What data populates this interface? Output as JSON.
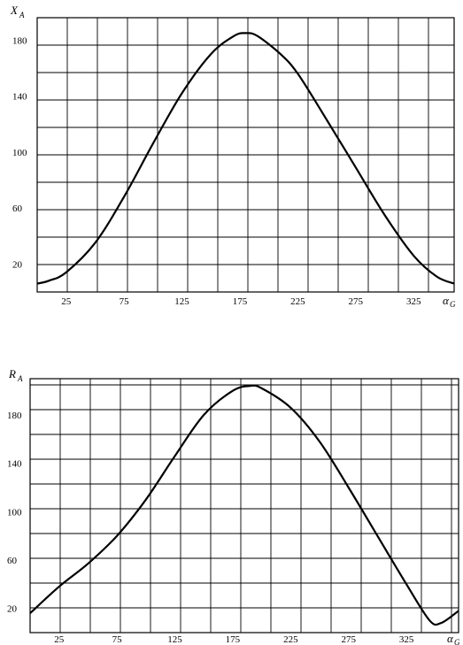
{
  "chart_data": [
    {
      "type": "line",
      "ylabel": "X",
      "ylabel_subscript": "A",
      "xlabel": "α",
      "xlabel_subscript": "G",
      "xlim": [
        0,
        360
      ],
      "ylim": [
        0,
        196
      ],
      "x_ticks": [
        25,
        75,
        125,
        175,
        225,
        275,
        325
      ],
      "x_tick_labels": [
        "25",
        "75",
        "125",
        "175",
        "225",
        "275",
        "325"
      ],
      "y_ticks": [
        20,
        60,
        100,
        140,
        180
      ],
      "y_tick_labels": [
        "20",
        "60",
        "100",
        "140",
        "180"
      ],
      "grid": true,
      "series": [
        {
          "x": [
            0,
            10,
            25,
            50,
            75,
            100,
            125,
            150,
            170,
            180,
            190,
            210,
            225,
            250,
            275,
            300,
            325,
            345,
            360
          ],
          "y": [
            6,
            8,
            14,
            35,
            68,
            106,
            142,
            170,
            183,
            185,
            183,
            170,
            156,
            123,
            89,
            55,
            26,
            11,
            6
          ]
        }
      ]
    },
    {
      "type": "line",
      "ylabel": "R",
      "ylabel_subscript": "A",
      "xlabel": "α",
      "xlabel_subscript": "G",
      "xlim": [
        0,
        370
      ],
      "ylim": [
        0,
        210
      ],
      "x_ticks": [
        25,
        75,
        125,
        175,
        225,
        275,
        325
      ],
      "x_tick_labels": [
        "25",
        "75",
        "125",
        "175",
        "225",
        "275",
        "325"
      ],
      "y_ticks": [
        20,
        60,
        100,
        140,
        180
      ],
      "y_tick_labels": [
        "20",
        "60",
        "100",
        "140",
        "180"
      ],
      "grid": true,
      "series": [
        {
          "x": [
            0,
            25,
            50,
            75,
            100,
            125,
            150,
            175,
            190,
            200,
            225,
            250,
            275,
            300,
            325,
            345,
            355,
            370
          ],
          "y": [
            16,
            38,
            57,
            80,
            110,
            146,
            180,
            200,
            204,
            202,
            186,
            158,
            120,
            80,
            40,
            10,
            8,
            18
          ]
        }
      ]
    }
  ]
}
